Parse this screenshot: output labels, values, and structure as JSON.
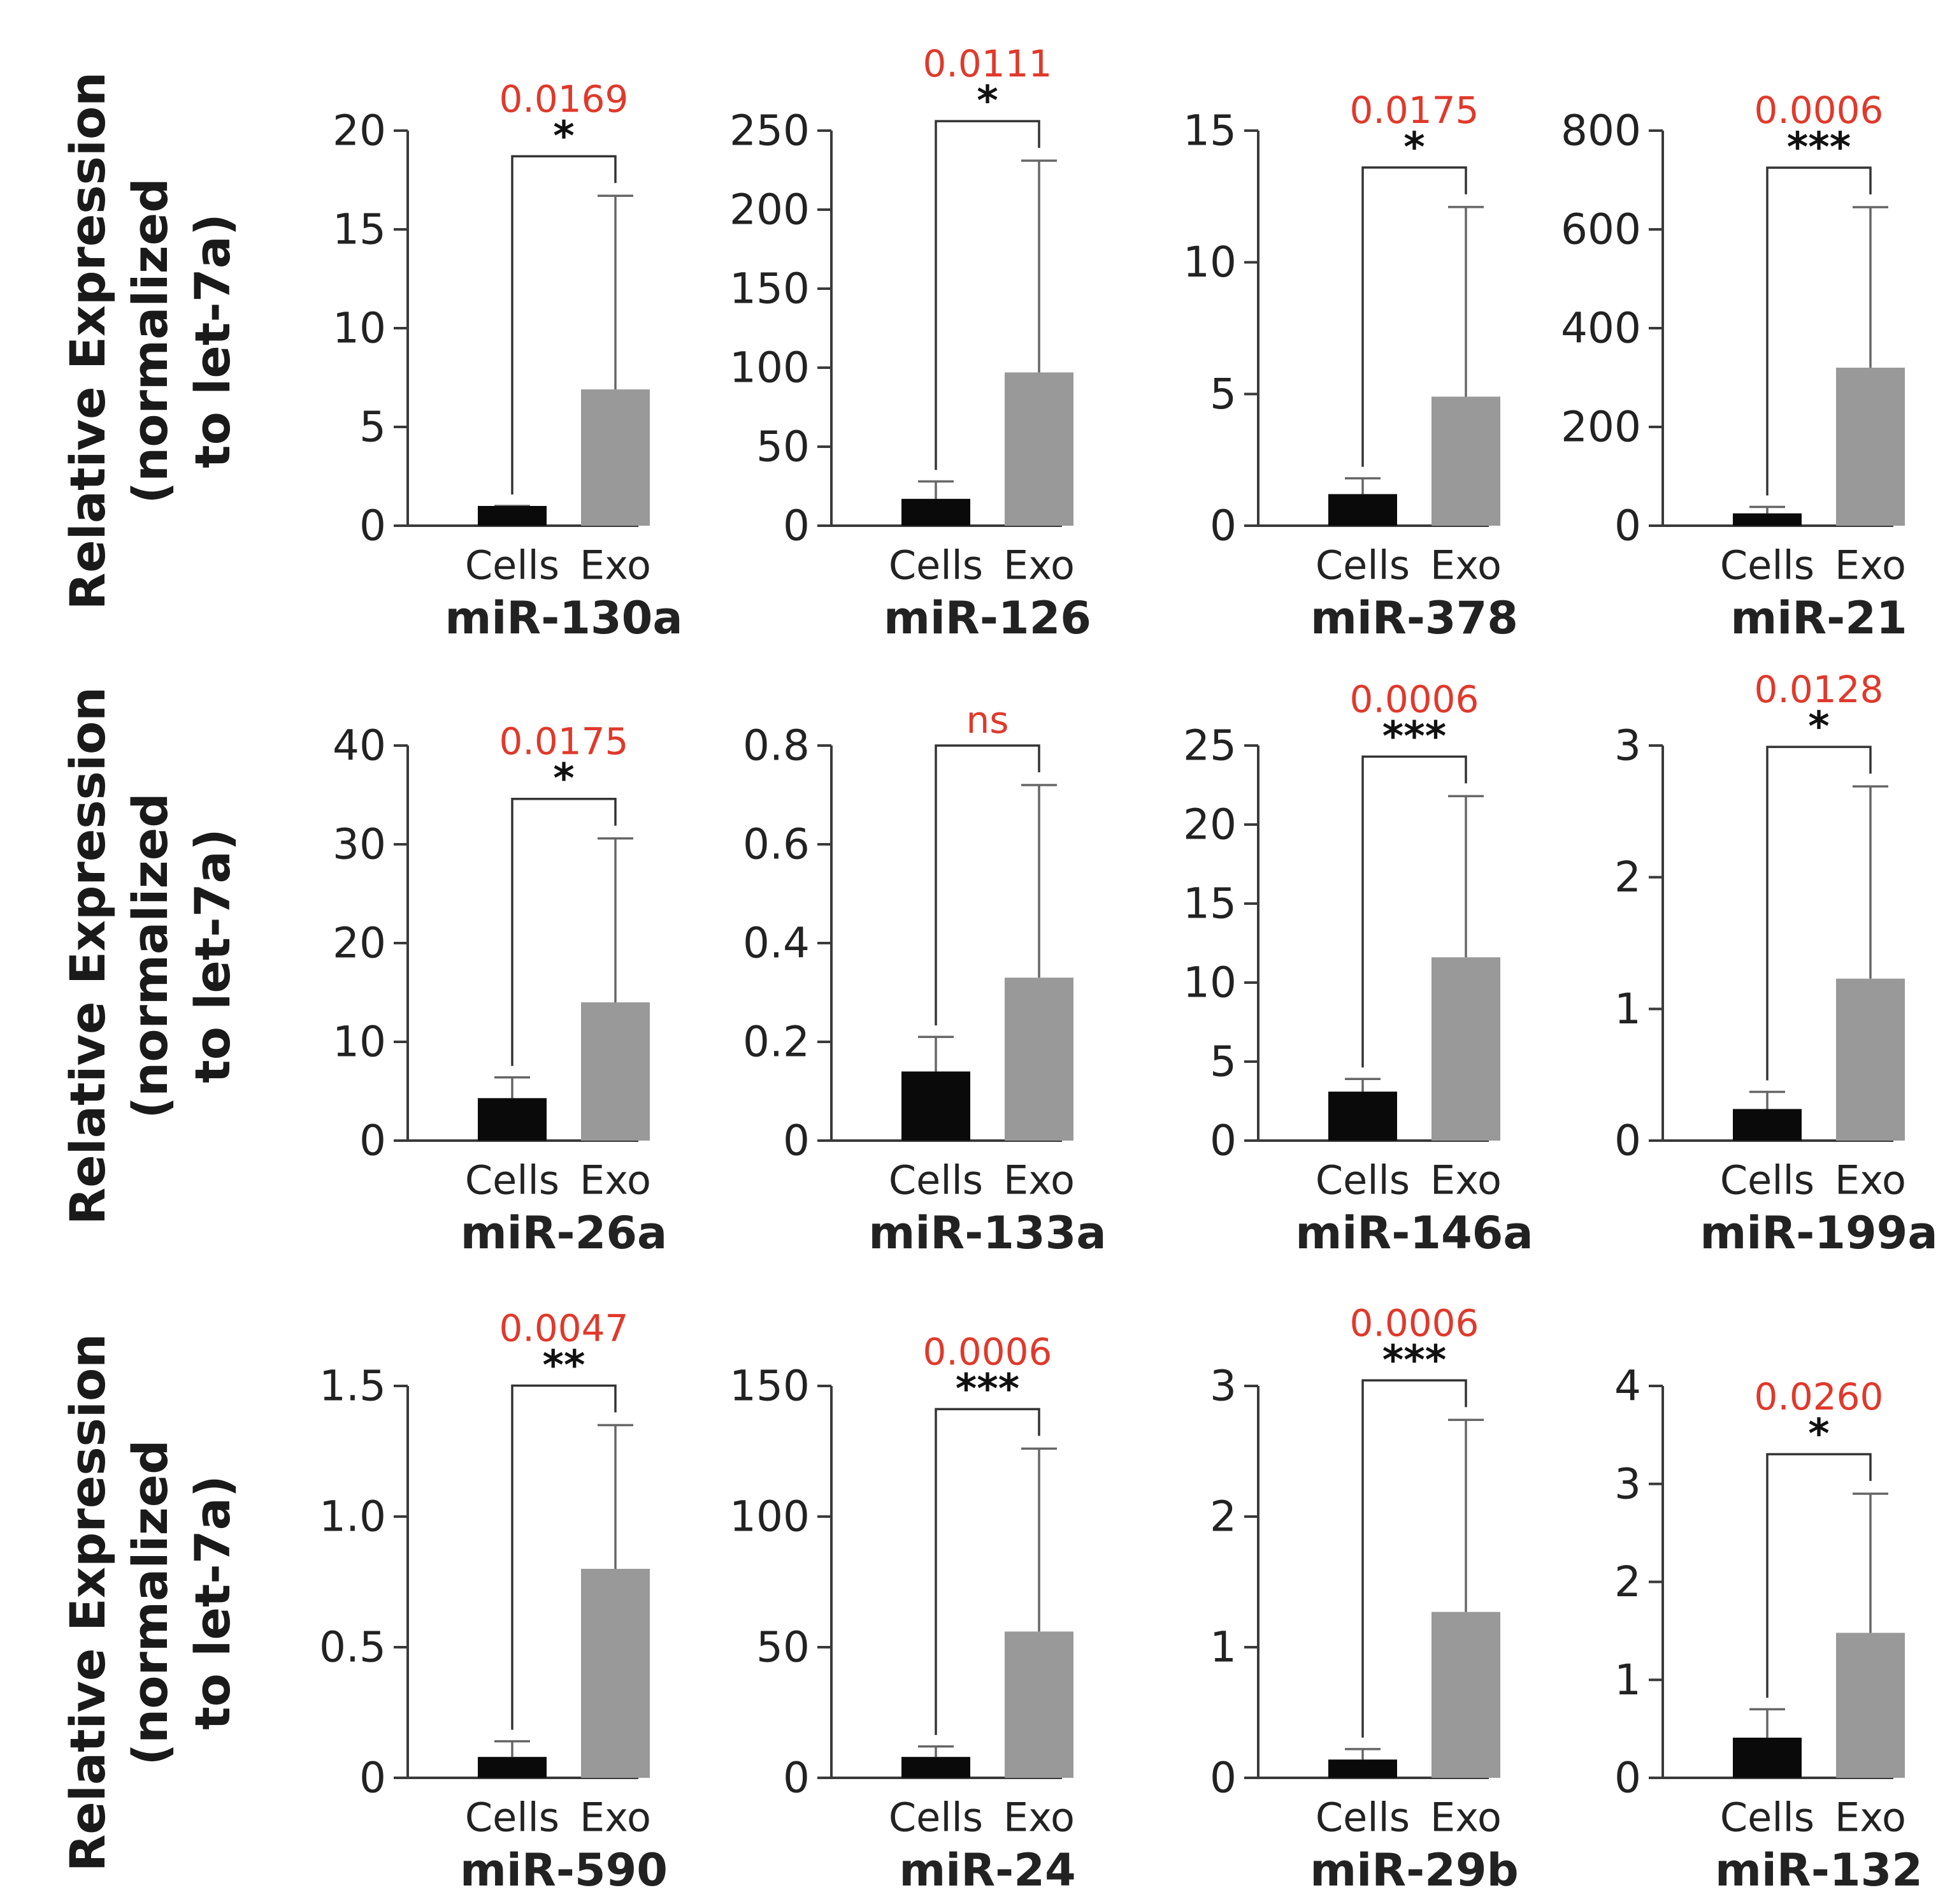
{
  "y_axis_label": {
    "line1": "Relative Expression",
    "line2": "(normalized",
    "line3": "to let-7a)"
  },
  "categories": [
    "Cells",
    "Exo"
  ],
  "colors": {
    "cells": "#0a0a0a",
    "exo": "#999999",
    "pvalue": "#e0392b",
    "axis": "#3a3a3a"
  },
  "chart_data": [
    {
      "type": "bar",
      "title": "miR-130a",
      "categories": [
        "Cells",
        "Exo"
      ],
      "values": [
        1.0,
        6.9
      ],
      "error_upper": [
        1.0,
        16.7
      ],
      "ylim": [
        0,
        20
      ],
      "yticks": [
        0,
        5,
        10,
        15,
        20
      ],
      "tick_labels": [
        "0",
        "5",
        "10",
        "15",
        "20"
      ],
      "pvalue": "0.0169",
      "stars": "*"
    },
    {
      "type": "bar",
      "title": "miR-126",
      "categories": [
        "Cells",
        "Exo"
      ],
      "values": [
        17,
        97
      ],
      "error_upper": [
        28,
        231
      ],
      "ylim": [
        0,
        250
      ],
      "yticks": [
        0,
        50,
        100,
        150,
        200,
        250
      ],
      "tick_labels": [
        "0",
        "50",
        "100",
        "150",
        "200",
        "250"
      ],
      "pvalue": "0.0111",
      "stars": "*"
    },
    {
      "type": "bar",
      "title": "miR-378",
      "categories": [
        "Cells",
        "Exo"
      ],
      "values": [
        1.2,
        4.9
      ],
      "error_upper": [
        1.8,
        12.1
      ],
      "ylim": [
        0,
        15
      ],
      "yticks": [
        0,
        5,
        10,
        15
      ],
      "tick_labels": [
        "0",
        "5",
        "10",
        "15"
      ],
      "pvalue": "0.0175",
      "stars": "*"
    },
    {
      "type": "bar",
      "title": "miR-21",
      "categories": [
        "Cells",
        "Exo"
      ],
      "values": [
        25,
        320
      ],
      "error_upper": [
        38,
        645
      ],
      "ylim": [
        0,
        800
      ],
      "yticks": [
        0,
        200,
        400,
        600,
        800
      ],
      "tick_labels": [
        "0",
        "200",
        "400",
        "600",
        "800"
      ],
      "pvalue": "0.0006",
      "stars": "***"
    },
    {
      "type": "bar",
      "title": "miR-26a",
      "categories": [
        "Cells",
        "Exo"
      ],
      "values": [
        4.3,
        14.0
      ],
      "error_upper": [
        6.4,
        30.6
      ],
      "ylim": [
        0,
        40
      ],
      "yticks": [
        0,
        10,
        20,
        30,
        40
      ],
      "tick_labels": [
        "0",
        "10",
        "20",
        "30",
        "40"
      ],
      "pvalue": "0.0175",
      "stars": "*"
    },
    {
      "type": "bar",
      "title": "miR-133a",
      "categories": [
        "Cells",
        "Exo"
      ],
      "values": [
        0.14,
        0.33
      ],
      "error_upper": [
        0.21,
        0.72
      ],
      "ylim": [
        0,
        0.8
      ],
      "yticks": [
        0,
        0.2,
        0.4,
        0.6,
        0.8
      ],
      "tick_labels": [
        "0",
        "0.2",
        "0.4",
        "0.6",
        "0.8"
      ],
      "pvalue": "ns",
      "stars": ""
    },
    {
      "type": "bar",
      "title": "miR-146a",
      "categories": [
        "Cells",
        "Exo"
      ],
      "values": [
        3.1,
        11.6
      ],
      "error_upper": [
        3.9,
        21.8
      ],
      "ylim": [
        0,
        25
      ],
      "yticks": [
        0,
        5,
        10,
        15,
        20,
        25
      ],
      "tick_labels": [
        "0",
        "5",
        "10",
        "15",
        "20",
        "25"
      ],
      "pvalue": "0.0006",
      "stars": "***"
    },
    {
      "type": "bar",
      "title": "miR-199a",
      "categories": [
        "Cells",
        "Exo"
      ],
      "values": [
        0.24,
        1.23
      ],
      "error_upper": [
        0.37,
        2.69
      ],
      "ylim": [
        0,
        3
      ],
      "yticks": [
        0,
        1,
        2,
        3
      ],
      "tick_labels": [
        "0",
        "1",
        "2",
        "3"
      ],
      "pvalue": "0.0128",
      "stars": "*"
    },
    {
      "type": "bar",
      "title": "miR-590",
      "categories": [
        "Cells",
        "Exo"
      ],
      "values": [
        0.08,
        0.8
      ],
      "error_upper": [
        0.14,
        1.35
      ],
      "ylim": [
        0,
        1.5
      ],
      "yticks": [
        0,
        0.5,
        1.0,
        1.5
      ],
      "tick_labels": [
        "0",
        "0.5",
        "1.0",
        "1.5"
      ],
      "pvalue": "0.0047",
      "stars": "**"
    },
    {
      "type": "bar",
      "title": "miR-24",
      "categories": [
        "Cells",
        "Exo"
      ],
      "values": [
        8,
        56
      ],
      "error_upper": [
        12,
        126
      ],
      "ylim": [
        0,
        150
      ],
      "yticks": [
        0,
        50,
        100,
        150
      ],
      "tick_labels": [
        "0",
        "50",
        "100",
        "150"
      ],
      "pvalue": "0.0006",
      "stars": "***"
    },
    {
      "type": "bar",
      "title": "miR-29b",
      "categories": [
        "Cells",
        "Exo"
      ],
      "values": [
        0.14,
        1.27
      ],
      "error_upper": [
        0.22,
        2.74
      ],
      "ylim": [
        0,
        3
      ],
      "yticks": [
        0,
        1,
        2,
        3
      ],
      "tick_labels": [
        "0",
        "1",
        "2",
        "3"
      ],
      "pvalue": "0.0006",
      "stars": "***"
    },
    {
      "type": "bar",
      "title": "miR-132",
      "categories": [
        "Cells",
        "Exo"
      ],
      "values": [
        0.41,
        1.48
      ],
      "error_upper": [
        0.7,
        2.9
      ],
      "ylim": [
        0,
        4
      ],
      "yticks": [
        0,
        1,
        2,
        3,
        4
      ],
      "tick_labels": [
        "0",
        "1",
        "2",
        "3",
        "4"
      ],
      "pvalue": "0.0260",
      "stars": "*"
    }
  ]
}
